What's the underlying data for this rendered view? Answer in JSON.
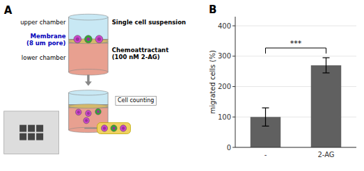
{
  "chart_data": {
    "type": "bar",
    "categories": [
      "-",
      "2-AG"
    ],
    "values": [
      100,
      270
    ],
    "errors": [
      30,
      25
    ],
    "color": "#606060",
    "ylabel": "migrated cells (%)",
    "ylim": [
      0,
      430
    ],
    "yticks": [
      0,
      100,
      200,
      300,
      400
    ],
    "annotations": [
      "A",
      "upper chamber",
      "Membrane\n(8 um pore)",
      "lower chamber",
      "Single cell suspension",
      "Chemoattractant\n(100 nM 2-AG)",
      "Cell counting",
      "B",
      "***"
    ]
  }
}
